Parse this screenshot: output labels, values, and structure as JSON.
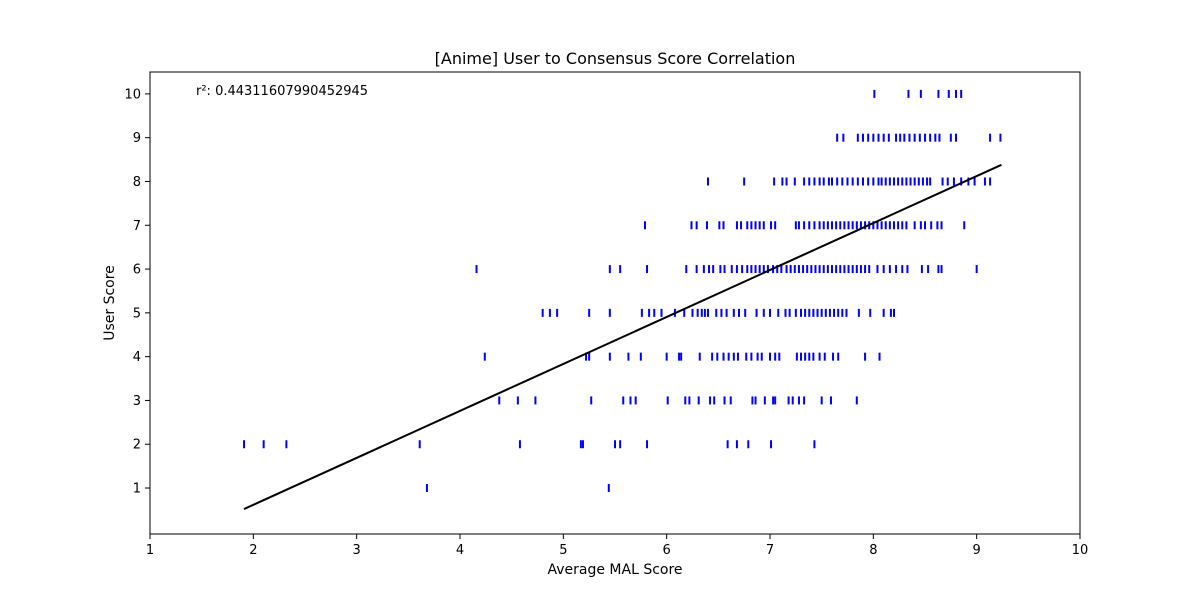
{
  "chart_data": {
    "type": "scatter",
    "title": "[Anime] User to Consensus Score Correlation",
    "xlabel": "Average MAL Score",
    "ylabel": "User Score",
    "xlim": [
      1,
      10
    ],
    "ylim": [
      -0.05,
      10.5
    ],
    "xticks": [
      "1",
      "2",
      "3",
      "4",
      "5",
      "6",
      "7",
      "8",
      "9",
      "10"
    ],
    "yticks": [
      "1",
      "2",
      "3",
      "4",
      "5",
      "6",
      "7",
      "8",
      "9",
      "10"
    ],
    "grid": false,
    "marker": "|",
    "colors": {
      "points": "#0000ff",
      "fit_line": "#000000",
      "axes": "#000000"
    },
    "annotation": "r²: 0.44311607990452945",
    "fit_line": {
      "x": [
        1.91,
        9.24
      ],
      "y": [
        0.52,
        8.38
      ]
    },
    "points": [
      {
        "x": 8.01,
        "y": 10
      },
      {
        "x": 8.34,
        "y": 10
      },
      {
        "x": 8.46,
        "y": 10
      },
      {
        "x": 8.63,
        "y": 10
      },
      {
        "x": 8.73,
        "y": 10
      },
      {
        "x": 8.8,
        "y": 10
      },
      {
        "x": 8.85,
        "y": 10
      },
      {
        "x": 7.65,
        "y": 9
      },
      {
        "x": 7.71,
        "y": 9
      },
      {
        "x": 7.85,
        "y": 9
      },
      {
        "x": 7.9,
        "y": 9
      },
      {
        "x": 7.95,
        "y": 9
      },
      {
        "x": 8.0,
        "y": 9
      },
      {
        "x": 8.05,
        "y": 9
      },
      {
        "x": 8.1,
        "y": 9
      },
      {
        "x": 8.15,
        "y": 9
      },
      {
        "x": 8.22,
        "y": 9
      },
      {
        "x": 8.26,
        "y": 9
      },
      {
        "x": 8.3,
        "y": 9
      },
      {
        "x": 8.35,
        "y": 9
      },
      {
        "x": 8.4,
        "y": 9
      },
      {
        "x": 8.45,
        "y": 9
      },
      {
        "x": 8.5,
        "y": 9
      },
      {
        "x": 8.55,
        "y": 9
      },
      {
        "x": 8.6,
        "y": 9
      },
      {
        "x": 8.64,
        "y": 9
      },
      {
        "x": 8.75,
        "y": 9
      },
      {
        "x": 8.8,
        "y": 9
      },
      {
        "x": 9.13,
        "y": 9
      },
      {
        "x": 9.23,
        "y": 9
      },
      {
        "x": 6.4,
        "y": 8
      },
      {
        "x": 6.75,
        "y": 8
      },
      {
        "x": 7.04,
        "y": 8
      },
      {
        "x": 7.12,
        "y": 8
      },
      {
        "x": 7.16,
        "y": 8
      },
      {
        "x": 7.24,
        "y": 8
      },
      {
        "x": 7.33,
        "y": 8
      },
      {
        "x": 7.38,
        "y": 8
      },
      {
        "x": 7.43,
        "y": 8
      },
      {
        "x": 7.48,
        "y": 8
      },
      {
        "x": 7.52,
        "y": 8
      },
      {
        "x": 7.57,
        "y": 8
      },
      {
        "x": 7.6,
        "y": 8
      },
      {
        "x": 7.65,
        "y": 8
      },
      {
        "x": 7.7,
        "y": 8
      },
      {
        "x": 7.75,
        "y": 8
      },
      {
        "x": 7.8,
        "y": 8
      },
      {
        "x": 7.85,
        "y": 8
      },
      {
        "x": 7.9,
        "y": 8
      },
      {
        "x": 7.95,
        "y": 8
      },
      {
        "x": 8.0,
        "y": 8
      },
      {
        "x": 8.05,
        "y": 8
      },
      {
        "x": 8.08,
        "y": 8
      },
      {
        "x": 8.12,
        "y": 8
      },
      {
        "x": 8.16,
        "y": 8
      },
      {
        "x": 8.2,
        "y": 8
      },
      {
        "x": 8.24,
        "y": 8
      },
      {
        "x": 8.28,
        "y": 8
      },
      {
        "x": 8.32,
        "y": 8
      },
      {
        "x": 8.36,
        "y": 8
      },
      {
        "x": 8.4,
        "y": 8
      },
      {
        "x": 8.44,
        "y": 8
      },
      {
        "x": 8.48,
        "y": 8
      },
      {
        "x": 8.52,
        "y": 8
      },
      {
        "x": 8.55,
        "y": 8
      },
      {
        "x": 8.67,
        "y": 8
      },
      {
        "x": 8.72,
        "y": 8
      },
      {
        "x": 8.78,
        "y": 8
      },
      {
        "x": 8.85,
        "y": 8
      },
      {
        "x": 8.92,
        "y": 8
      },
      {
        "x": 8.98,
        "y": 8
      },
      {
        "x": 9.08,
        "y": 8
      },
      {
        "x": 9.13,
        "y": 8
      },
      {
        "x": 5.79,
        "y": 7
      },
      {
        "x": 6.24,
        "y": 7
      },
      {
        "x": 6.29,
        "y": 7
      },
      {
        "x": 6.39,
        "y": 7
      },
      {
        "x": 6.51,
        "y": 7
      },
      {
        "x": 6.55,
        "y": 7
      },
      {
        "x": 6.68,
        "y": 7
      },
      {
        "x": 6.72,
        "y": 7
      },
      {
        "x": 6.78,
        "y": 7
      },
      {
        "x": 6.82,
        "y": 7
      },
      {
        "x": 6.86,
        "y": 7
      },
      {
        "x": 6.9,
        "y": 7
      },
      {
        "x": 6.94,
        "y": 7
      },
      {
        "x": 7.01,
        "y": 7
      },
      {
        "x": 7.05,
        "y": 7
      },
      {
        "x": 7.25,
        "y": 7
      },
      {
        "x": 7.28,
        "y": 7
      },
      {
        "x": 7.33,
        "y": 7
      },
      {
        "x": 7.38,
        "y": 7
      },
      {
        "x": 7.43,
        "y": 7
      },
      {
        "x": 7.48,
        "y": 7
      },
      {
        "x": 7.52,
        "y": 7
      },
      {
        "x": 7.56,
        "y": 7
      },
      {
        "x": 7.6,
        "y": 7
      },
      {
        "x": 7.64,
        "y": 7
      },
      {
        "x": 7.68,
        "y": 7
      },
      {
        "x": 7.72,
        "y": 7
      },
      {
        "x": 7.76,
        "y": 7
      },
      {
        "x": 7.8,
        "y": 7
      },
      {
        "x": 7.84,
        "y": 7
      },
      {
        "x": 7.88,
        "y": 7
      },
      {
        "x": 7.92,
        "y": 7
      },
      {
        "x": 7.96,
        "y": 7
      },
      {
        "x": 8.0,
        "y": 7
      },
      {
        "x": 8.04,
        "y": 7
      },
      {
        "x": 8.08,
        "y": 7
      },
      {
        "x": 8.12,
        "y": 7
      },
      {
        "x": 8.16,
        "y": 7
      },
      {
        "x": 8.2,
        "y": 7
      },
      {
        "x": 8.24,
        "y": 7
      },
      {
        "x": 8.28,
        "y": 7
      },
      {
        "x": 8.32,
        "y": 7
      },
      {
        "x": 8.4,
        "y": 7
      },
      {
        "x": 8.46,
        "y": 7
      },
      {
        "x": 8.5,
        "y": 7
      },
      {
        "x": 8.56,
        "y": 7
      },
      {
        "x": 8.62,
        "y": 7
      },
      {
        "x": 8.66,
        "y": 7
      },
      {
        "x": 8.88,
        "y": 7
      },
      {
        "x": 4.16,
        "y": 6
      },
      {
        "x": 5.45,
        "y": 6
      },
      {
        "x": 5.55,
        "y": 6
      },
      {
        "x": 5.81,
        "y": 6
      },
      {
        "x": 6.19,
        "y": 6
      },
      {
        "x": 6.29,
        "y": 6
      },
      {
        "x": 6.36,
        "y": 6
      },
      {
        "x": 6.41,
        "y": 6
      },
      {
        "x": 6.45,
        "y": 6
      },
      {
        "x": 6.52,
        "y": 6
      },
      {
        "x": 6.56,
        "y": 6
      },
      {
        "x": 6.63,
        "y": 6
      },
      {
        "x": 6.68,
        "y": 6
      },
      {
        "x": 6.73,
        "y": 6
      },
      {
        "x": 6.78,
        "y": 6
      },
      {
        "x": 6.82,
        "y": 6
      },
      {
        "x": 6.86,
        "y": 6
      },
      {
        "x": 6.9,
        "y": 6
      },
      {
        "x": 6.94,
        "y": 6
      },
      {
        "x": 6.98,
        "y": 6
      },
      {
        "x": 7.03,
        "y": 6
      },
      {
        "x": 7.07,
        "y": 6
      },
      {
        "x": 7.11,
        "y": 6
      },
      {
        "x": 7.16,
        "y": 6
      },
      {
        "x": 7.2,
        "y": 6
      },
      {
        "x": 7.24,
        "y": 6
      },
      {
        "x": 7.28,
        "y": 6
      },
      {
        "x": 7.32,
        "y": 6
      },
      {
        "x": 7.36,
        "y": 6
      },
      {
        "x": 7.4,
        "y": 6
      },
      {
        "x": 7.44,
        "y": 6
      },
      {
        "x": 7.48,
        "y": 6
      },
      {
        "x": 7.52,
        "y": 6
      },
      {
        "x": 7.56,
        "y": 6
      },
      {
        "x": 7.6,
        "y": 6
      },
      {
        "x": 7.64,
        "y": 6
      },
      {
        "x": 7.68,
        "y": 6
      },
      {
        "x": 7.72,
        "y": 6
      },
      {
        "x": 7.76,
        "y": 6
      },
      {
        "x": 7.8,
        "y": 6
      },
      {
        "x": 7.84,
        "y": 6
      },
      {
        "x": 7.88,
        "y": 6
      },
      {
        "x": 7.92,
        "y": 6
      },
      {
        "x": 7.96,
        "y": 6
      },
      {
        "x": 8.04,
        "y": 6
      },
      {
        "x": 8.1,
        "y": 6
      },
      {
        "x": 8.16,
        "y": 6
      },
      {
        "x": 8.22,
        "y": 6
      },
      {
        "x": 8.28,
        "y": 6
      },
      {
        "x": 8.33,
        "y": 6
      },
      {
        "x": 8.47,
        "y": 6
      },
      {
        "x": 8.53,
        "y": 6
      },
      {
        "x": 8.63,
        "y": 6
      },
      {
        "x": 8.66,
        "y": 6
      },
      {
        "x": 9.0,
        "y": 6
      },
      {
        "x": 4.8,
        "y": 5
      },
      {
        "x": 4.87,
        "y": 5
      },
      {
        "x": 4.94,
        "y": 5
      },
      {
        "x": 5.25,
        "y": 5
      },
      {
        "x": 5.45,
        "y": 5
      },
      {
        "x": 5.76,
        "y": 5
      },
      {
        "x": 5.83,
        "y": 5
      },
      {
        "x": 5.88,
        "y": 5
      },
      {
        "x": 5.95,
        "y": 5
      },
      {
        "x": 6.08,
        "y": 5
      },
      {
        "x": 6.17,
        "y": 5
      },
      {
        "x": 6.25,
        "y": 5
      },
      {
        "x": 6.3,
        "y": 5
      },
      {
        "x": 6.34,
        "y": 5
      },
      {
        "x": 6.37,
        "y": 5
      },
      {
        "x": 6.4,
        "y": 5
      },
      {
        "x": 6.48,
        "y": 5
      },
      {
        "x": 6.53,
        "y": 5
      },
      {
        "x": 6.58,
        "y": 5
      },
      {
        "x": 6.65,
        "y": 5
      },
      {
        "x": 6.7,
        "y": 5
      },
      {
        "x": 6.76,
        "y": 5
      },
      {
        "x": 6.87,
        "y": 5
      },
      {
        "x": 6.94,
        "y": 5
      },
      {
        "x": 7.0,
        "y": 5
      },
      {
        "x": 7.08,
        "y": 5
      },
      {
        "x": 7.15,
        "y": 5
      },
      {
        "x": 7.19,
        "y": 5
      },
      {
        "x": 7.25,
        "y": 5
      },
      {
        "x": 7.3,
        "y": 5
      },
      {
        "x": 7.34,
        "y": 5
      },
      {
        "x": 7.38,
        "y": 5
      },
      {
        "x": 7.42,
        "y": 5
      },
      {
        "x": 7.46,
        "y": 5
      },
      {
        "x": 7.5,
        "y": 5
      },
      {
        "x": 7.54,
        "y": 5
      },
      {
        "x": 7.58,
        "y": 5
      },
      {
        "x": 7.62,
        "y": 5
      },
      {
        "x": 7.66,
        "y": 5
      },
      {
        "x": 7.7,
        "y": 5
      },
      {
        "x": 7.74,
        "y": 5
      },
      {
        "x": 7.86,
        "y": 5
      },
      {
        "x": 7.97,
        "y": 5
      },
      {
        "x": 8.1,
        "y": 5
      },
      {
        "x": 8.17,
        "y": 5
      },
      {
        "x": 8.2,
        "y": 5
      },
      {
        "x": 4.24,
        "y": 4
      },
      {
        "x": 5.22,
        "y": 4
      },
      {
        "x": 5.25,
        "y": 4
      },
      {
        "x": 5.45,
        "y": 4
      },
      {
        "x": 5.63,
        "y": 4
      },
      {
        "x": 5.75,
        "y": 4
      },
      {
        "x": 6.0,
        "y": 4
      },
      {
        "x": 6.12,
        "y": 4
      },
      {
        "x": 6.14,
        "y": 4
      },
      {
        "x": 6.32,
        "y": 4
      },
      {
        "x": 6.44,
        "y": 4
      },
      {
        "x": 6.49,
        "y": 4
      },
      {
        "x": 6.55,
        "y": 4
      },
      {
        "x": 6.6,
        "y": 4
      },
      {
        "x": 6.65,
        "y": 4
      },
      {
        "x": 6.69,
        "y": 4
      },
      {
        "x": 6.77,
        "y": 4
      },
      {
        "x": 6.82,
        "y": 4
      },
      {
        "x": 6.88,
        "y": 4
      },
      {
        "x": 6.92,
        "y": 4
      },
      {
        "x": 7.0,
        "y": 4
      },
      {
        "x": 7.05,
        "y": 4
      },
      {
        "x": 7.09,
        "y": 4
      },
      {
        "x": 7.26,
        "y": 4
      },
      {
        "x": 7.3,
        "y": 4
      },
      {
        "x": 7.34,
        "y": 4
      },
      {
        "x": 7.38,
        "y": 4
      },
      {
        "x": 7.42,
        "y": 4
      },
      {
        "x": 7.48,
        "y": 4
      },
      {
        "x": 7.53,
        "y": 4
      },
      {
        "x": 7.61,
        "y": 4
      },
      {
        "x": 7.66,
        "y": 4
      },
      {
        "x": 7.92,
        "y": 4
      },
      {
        "x": 8.06,
        "y": 4
      },
      {
        "x": 4.38,
        "y": 3
      },
      {
        "x": 4.56,
        "y": 3
      },
      {
        "x": 4.73,
        "y": 3
      },
      {
        "x": 5.27,
        "y": 3
      },
      {
        "x": 5.58,
        "y": 3
      },
      {
        "x": 5.65,
        "y": 3
      },
      {
        "x": 5.7,
        "y": 3
      },
      {
        "x": 6.01,
        "y": 3
      },
      {
        "x": 6.18,
        "y": 3
      },
      {
        "x": 6.22,
        "y": 3
      },
      {
        "x": 6.31,
        "y": 3
      },
      {
        "x": 6.42,
        "y": 3
      },
      {
        "x": 6.46,
        "y": 3
      },
      {
        "x": 6.56,
        "y": 3
      },
      {
        "x": 6.62,
        "y": 3
      },
      {
        "x": 6.83,
        "y": 3
      },
      {
        "x": 6.86,
        "y": 3
      },
      {
        "x": 6.95,
        "y": 3
      },
      {
        "x": 7.03,
        "y": 3
      },
      {
        "x": 7.05,
        "y": 3
      },
      {
        "x": 7.18,
        "y": 3
      },
      {
        "x": 7.22,
        "y": 3
      },
      {
        "x": 7.28,
        "y": 3
      },
      {
        "x": 7.33,
        "y": 3
      },
      {
        "x": 7.5,
        "y": 3
      },
      {
        "x": 7.59,
        "y": 3
      },
      {
        "x": 7.84,
        "y": 3
      },
      {
        "x": 1.91,
        "y": 2
      },
      {
        "x": 2.1,
        "y": 2
      },
      {
        "x": 2.32,
        "y": 2
      },
      {
        "x": 3.61,
        "y": 2
      },
      {
        "x": 4.58,
        "y": 2
      },
      {
        "x": 5.17,
        "y": 2
      },
      {
        "x": 5.19,
        "y": 2
      },
      {
        "x": 5.5,
        "y": 2
      },
      {
        "x": 5.55,
        "y": 2
      },
      {
        "x": 5.81,
        "y": 2
      },
      {
        "x": 6.59,
        "y": 2
      },
      {
        "x": 6.68,
        "y": 2
      },
      {
        "x": 6.79,
        "y": 2
      },
      {
        "x": 7.01,
        "y": 2
      },
      {
        "x": 7.43,
        "y": 2
      },
      {
        "x": 3.68,
        "y": 1
      },
      {
        "x": 5.44,
        "y": 1
      }
    ]
  }
}
